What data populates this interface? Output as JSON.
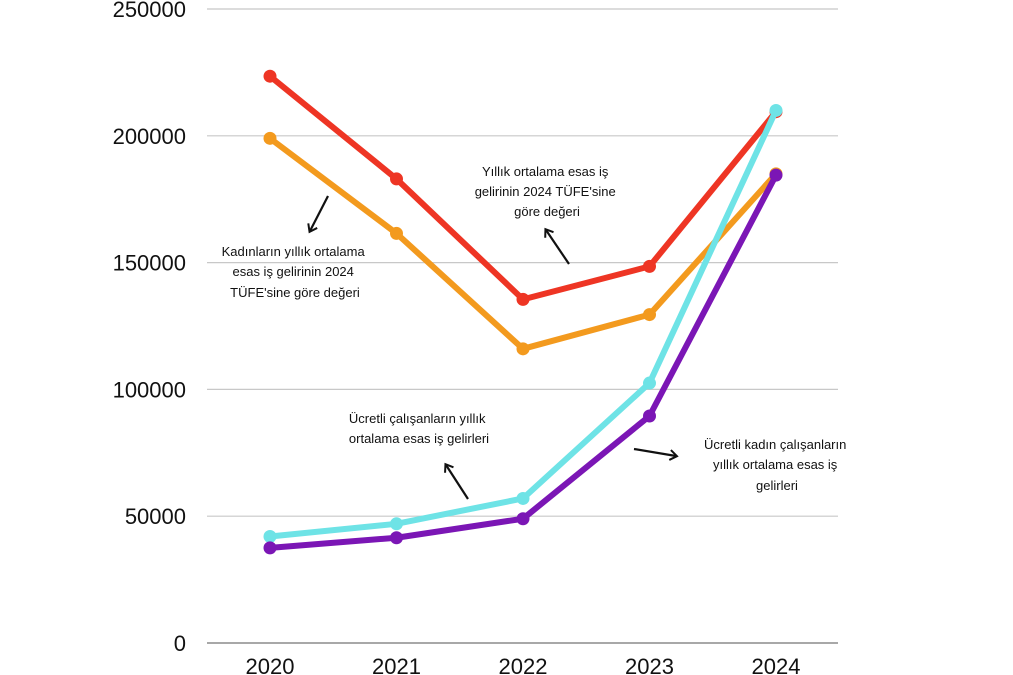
{
  "chart_data": {
    "type": "line",
    "x": [
      "2020",
      "2021",
      "2022",
      "2023",
      "2024"
    ],
    "ylim": [
      0,
      250000
    ],
    "yticks": [
      0,
      50000,
      100000,
      150000,
      200000,
      250000
    ],
    "ytick_labels": [
      "0",
      "50000",
      "100000",
      "150000",
      "200000",
      "250000"
    ],
    "grid": true,
    "series": [
      {
        "name": "",
        "color": "#ee3524",
        "values": [
          223500,
          183000,
          135500,
          148500,
          209500
        ]
      },
      {
        "name": "",
        "color": "#f39a1e",
        "values": [
          199000,
          161500,
          116000,
          129500,
          185000
        ]
      },
      {
        "name": "",
        "color": "#6ee3e6",
        "values": [
          42000,
          47000,
          57000,
          102500,
          210000
        ]
      },
      {
        "name": "",
        "color": "#7b16b5",
        "values": [
          37500,
          41500,
          49000,
          89500,
          184500
        ]
      }
    ],
    "annotations": [
      {
        "id": "red",
        "lines": [
          "Yıllık ortalama esas iş",
          "gelirinin 2024 TÜFE'sine",
          "göre değeri"
        ]
      },
      {
        "id": "orange",
        "lines": [
          "Kadınların yıllık ortalama",
          "esas iş gelirinin 2024",
          "TÜFE'sine göre değeri"
        ]
      },
      {
        "id": "cyan",
        "lines": [
          "Ücretli çalışanların yıllık",
          "ortalama esas iş gelirleri"
        ]
      },
      {
        "id": "purple",
        "lines": [
          "Ücretli kadın çalışanların",
          "yıllık ortalama esas iş",
          "gelirleri"
        ]
      }
    ]
  }
}
